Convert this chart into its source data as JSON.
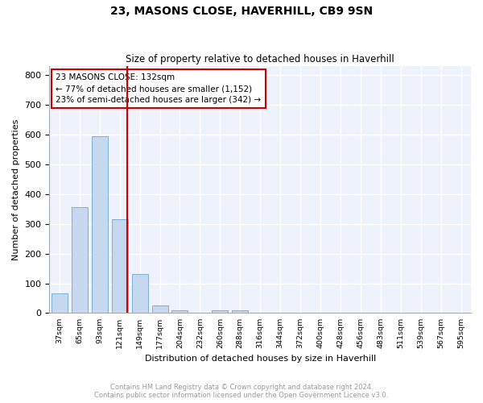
{
  "title1": "23, MASONS CLOSE, HAVERHILL, CB9 9SN",
  "title2": "Size of property relative to detached houses in Haverhill",
  "xlabel": "Distribution of detached houses by size in Haverhill",
  "ylabel": "Number of detached properties",
  "categories": [
    "37sqm",
    "65sqm",
    "93sqm",
    "121sqm",
    "149sqm",
    "177sqm",
    "204sqm",
    "232sqm",
    "260sqm",
    "288sqm",
    "316sqm",
    "344sqm",
    "372sqm",
    "400sqm",
    "428sqm",
    "456sqm",
    "483sqm",
    "511sqm",
    "539sqm",
    "567sqm",
    "595sqm"
  ],
  "values": [
    65,
    355,
    595,
    315,
    130,
    25,
    8,
    0,
    8,
    8,
    0,
    0,
    0,
    0,
    0,
    0,
    0,
    0,
    0,
    0,
    0
  ],
  "bar_color": "#c5d8f0",
  "bar_edge_color": "#7bafd4",
  "vline_color": "#cc0000",
  "annotation_text": "23 MASONS CLOSE: 132sqm\n← 77% of detached houses are smaller (1,152)\n23% of semi-detached houses are larger (342) →",
  "annotation_box_color": "#cc0000",
  "ylim": [
    0,
    830
  ],
  "yticks": [
    0,
    100,
    200,
    300,
    400,
    500,
    600,
    700,
    800
  ],
  "background_color": "#eef2fa",
  "grid_color": "#ffffff",
  "footer1": "Contains HM Land Registry data © Crown copyright and database right 2024.",
  "footer2": "Contains public sector information licensed under the Open Government Licence v3.0."
}
